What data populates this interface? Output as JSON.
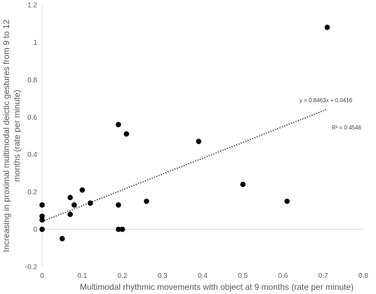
{
  "chart_data": {
    "type": "scatter",
    "xlabel": "Multimodal rhythmic movements with object at 9 months (rate per minute)",
    "ylabel_lines": [
      "Increasing in proximal multimodal deictic gestures from 9 to 12",
      "months (rate per minute)"
    ],
    "xlim": [
      0,
      0.8
    ],
    "ylim": [
      -0.2,
      1.2
    ],
    "x_ticks": [
      0,
      0.1,
      0.2,
      0.3,
      0.4,
      0.5,
      0.6,
      0.7,
      0.8
    ],
    "x_tick_labels": [
      "0",
      "0.1",
      "0.2",
      "0.3",
      "0.4",
      "0.5",
      "0.6",
      "0.7",
      "0.8"
    ],
    "y_ticks": [
      -0.2,
      0,
      0.2,
      0.4,
      0.6,
      0.8,
      1,
      1.2
    ],
    "y_tick_labels": [
      "-0.2",
      "0",
      "0.2",
      "0.4",
      "0.6",
      "0.8",
      "1",
      "1.2"
    ],
    "points": [
      {
        "x": 0.0,
        "y": 0.13
      },
      {
        "x": 0.0,
        "y": 0.07
      },
      {
        "x": 0.0,
        "y": 0.05
      },
      {
        "x": 0.0,
        "y": 0.0
      },
      {
        "x": 0.05,
        "y": -0.05
      },
      {
        "x": 0.07,
        "y": 0.17
      },
      {
        "x": 0.07,
        "y": 0.08
      },
      {
        "x": 0.08,
        "y": 0.13
      },
      {
        "x": 0.1,
        "y": 0.21
      },
      {
        "x": 0.12,
        "y": 0.14
      },
      {
        "x": 0.19,
        "y": 0.56
      },
      {
        "x": 0.19,
        "y": 0.13
      },
      {
        "x": 0.19,
        "y": 0.0
      },
      {
        "x": 0.2,
        "y": 0.0
      },
      {
        "x": 0.21,
        "y": 0.51
      },
      {
        "x": 0.26,
        "y": 0.15
      },
      {
        "x": 0.39,
        "y": 0.47
      },
      {
        "x": 0.5,
        "y": 0.24
      },
      {
        "x": 0.61,
        "y": 0.15
      },
      {
        "x": 0.71,
        "y": 1.08
      }
    ],
    "trendline": {
      "slope": 0.8463,
      "intercept": 0.0416,
      "x_range": [
        0,
        0.71
      ],
      "style": "dotted"
    },
    "equation_label": "y = 0.8463x + 0.0416",
    "r2_label": "R² = 0.4546",
    "grid": false,
    "marker_color": "#000000",
    "axis_color": "#d9d9d9",
    "trend_color": "#404040"
  }
}
